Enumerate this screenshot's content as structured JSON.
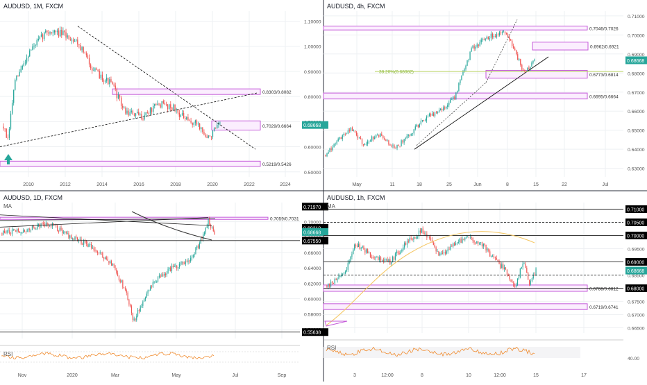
{
  "colors": {
    "up": "#26a69a",
    "down": "#ef5350",
    "zone": "#c45ad9",
    "zone_fill": "#fbeefe",
    "trend": "#222222",
    "ma_yellow": "#f5c96a",
    "rsi": "#f08a2c",
    "fib": "#b5d05a",
    "price_tag": "#26a69a",
    "black_tag": "#000000",
    "grid": "#eef0f3"
  },
  "chart_data": [
    {
      "id": "monthly",
      "type": "candlestick",
      "title": "AUDUSD, 1M, FXCM",
      "x_labels": [
        "2010",
        "2012",
        "2014",
        "2016",
        "2018",
        "2020",
        "2022",
        "2024"
      ],
      "y_labels": [
        "1.10000",
        "1.00000",
        "0.90000",
        "0.80000",
        "0.70000",
        "0.60000",
        "0.50000"
      ],
      "ylim": [
        0.48,
        1.14
      ],
      "last_price": "0.68668",
      "zones": [
        {
          "label": "0.8303/0.8082",
          "hi": 0.8303,
          "lo": 0.8082
        },
        {
          "label": "0.7029/0.6664",
          "hi": 0.7029,
          "lo": 0.6664
        },
        {
          "label": "0.5219/0.5426",
          "hi": 0.5426,
          "lo": 0.5219
        }
      ],
      "annotations": [
        "up-arrow at 2008 low"
      ]
    },
    {
      "id": "h4",
      "type": "candlestick",
      "title": "AUDUSD, 4h, FXCM",
      "x_labels": [
        "May",
        "11",
        "18",
        "25",
        "Jun",
        "8",
        "15",
        "22",
        "Jul"
      ],
      "y_labels": [
        "0.71000",
        "0.70000",
        "0.69000",
        "0.68000",
        "0.67000",
        "0.66000",
        "0.65000",
        "0.64000",
        "0.63000"
      ],
      "ylim": [
        0.6255,
        0.7125
      ],
      "last_price": "0.68668",
      "zones": [
        {
          "label": "0.7046/0.7026",
          "hi": 0.7046,
          "lo": 0.7026
        },
        {
          "label": "0.6962/0.6921",
          "hi": 0.6962,
          "lo": 0.6921
        },
        {
          "label": "0.6773/0.6814",
          "hi": 0.6814,
          "lo": 0.6773
        },
        {
          "label": "0.6695/0.6664",
          "hi": 0.6695,
          "lo": 0.6664
        }
      ],
      "fib": {
        "label": "38.20%(0.68082)",
        "value": 0.68082
      }
    },
    {
      "id": "daily",
      "type": "candlestick",
      "title": "AUDUSD, 1D, FXCM",
      "indicator": "MA",
      "x_labels": [
        "Nov",
        "2020",
        "Mar",
        "May",
        "Jul",
        "Sep"
      ],
      "y_labels": [
        "0.70000",
        "0.68000",
        "0.66000",
        "0.64000",
        "0.62000",
        "0.60000",
        "0.58000",
        "0.56000"
      ],
      "ylim": [
        0.548,
        0.725
      ],
      "last_price": "0.68668",
      "price_tags": [
        {
          "label": "0.71970",
          "value": 0.7197,
          "style": "black"
        },
        {
          "label": "0.69210",
          "value": 0.6921,
          "style": "black"
        },
        {
          "label": "0.68668",
          "value": 0.68668,
          "style": "green"
        },
        {
          "label": "0.67550",
          "value": 0.6755,
          "style": "black"
        },
        {
          "label": "0.55638",
          "value": 0.55638,
          "style": "black"
        }
      ],
      "zones": [
        {
          "label": "0.7059/0.7031",
          "hi": 0.7059,
          "lo": 0.7031
        }
      ],
      "rsi_label": "RSI"
    },
    {
      "id": "h1",
      "type": "candlestick",
      "title": "AUDUSD, 1h, FXCM",
      "indicator": "MA",
      "x_labels": [
        "3",
        "12:00",
        "8",
        "10",
        "12:00",
        "15",
        "17"
      ],
      "y_labels": [
        "0.71000",
        "0.70500",
        "0.70000",
        "0.69500",
        "0.69000",
        "0.68500",
        "0.68000",
        "0.67500",
        "0.67000",
        "0.66500"
      ],
      "ylim": [
        0.663,
        0.7125
      ],
      "last_price": "0.68668",
      "price_tags": [
        {
          "label": "0.71000",
          "value": 0.71,
          "style": "black"
        },
        {
          "label": "0.70500",
          "value": 0.705,
          "style": "black"
        },
        {
          "label": "0.70000",
          "value": 0.7,
          "style": "black"
        },
        {
          "label": "0.69000",
          "value": 0.69,
          "style": "black"
        },
        {
          "label": "0.68668",
          "value": 0.68668,
          "style": "green"
        },
        {
          "label": "0.68000",
          "value": 0.68,
          "style": "black"
        }
      ],
      "dashed_levels": [
        0.705,
        0.685
      ],
      "zones": [
        {
          "label": "0.6788/0.6812",
          "hi": 0.6812,
          "lo": 0.6788
        },
        {
          "label": "0.6719/0.6741",
          "hi": 0.6741,
          "lo": 0.6719
        }
      ],
      "rsi_label": "RSI",
      "rsi_levels": [
        "40.00"
      ]
    }
  ]
}
